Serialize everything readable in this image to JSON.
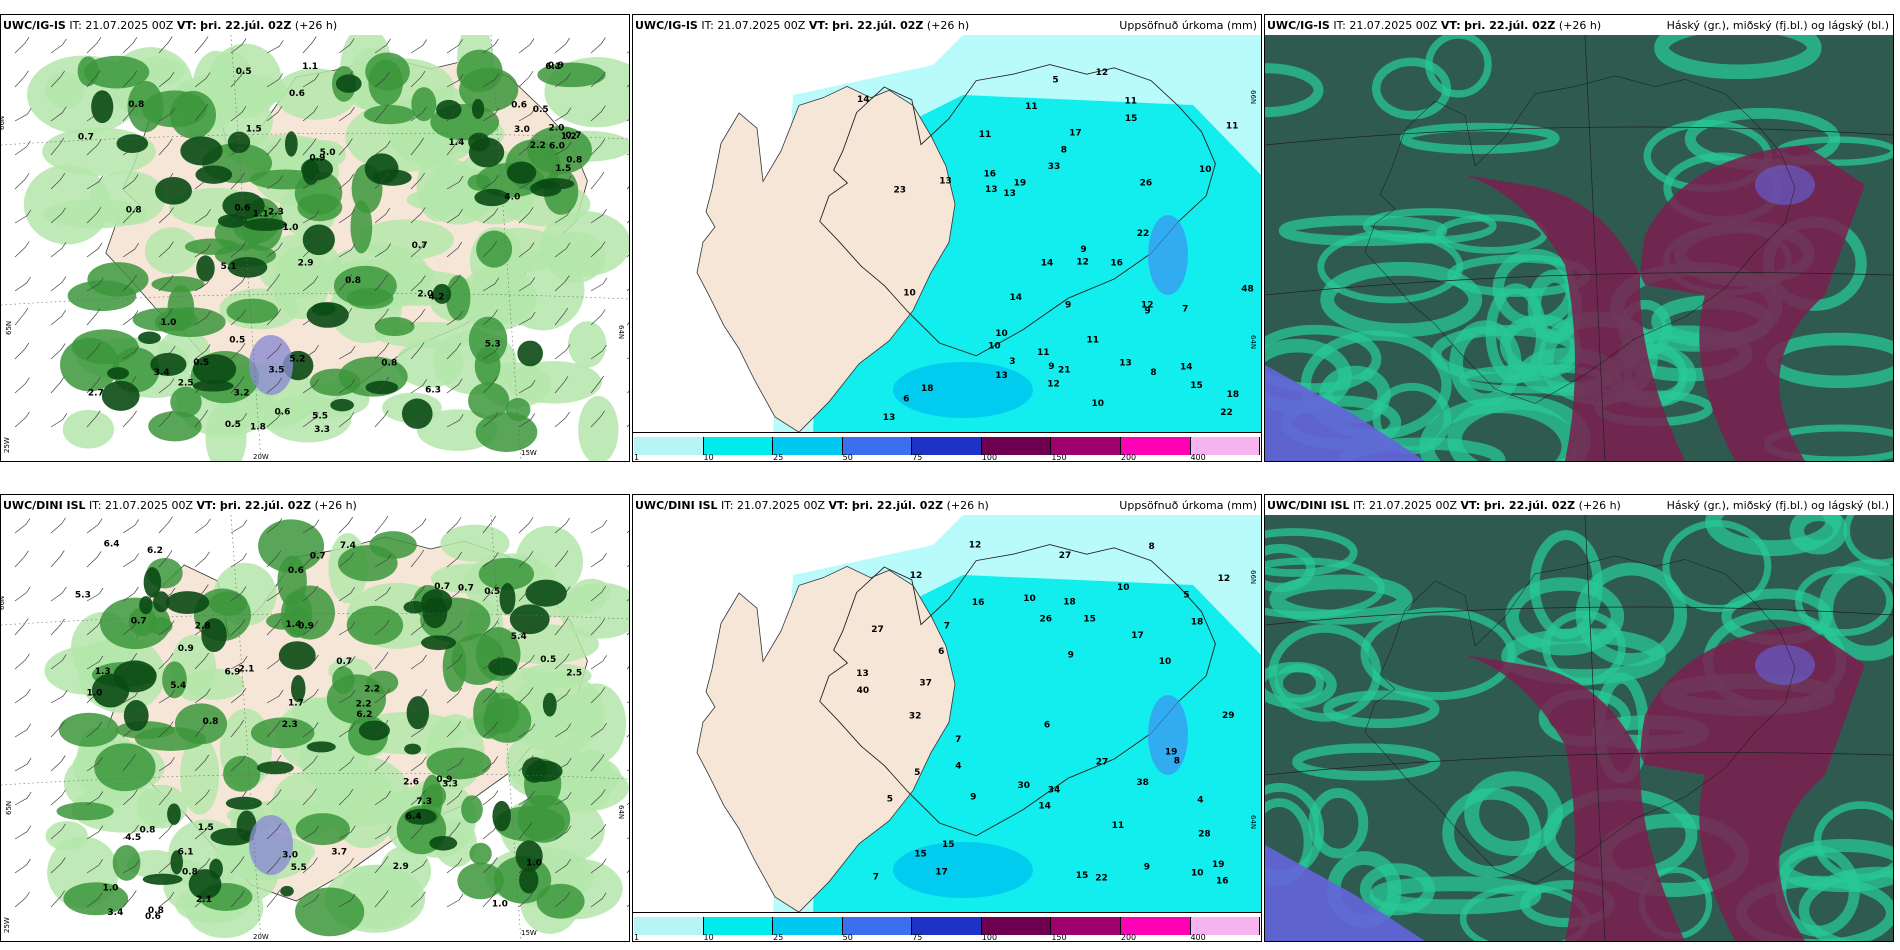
{
  "panels": [
    {
      "id": "ig-wind",
      "model": "UWC/IG-IS",
      "it": "IT: 21.07.2025 00Z",
      "vt_label": "VT:",
      "vt": "þri. 22.júl. 02Z",
      "lead": "(+26 h)",
      "right_title": "",
      "values": [
        "1.0",
        "0.8",
        "2.0",
        "2.3",
        "0.9",
        "0.9",
        "0.5",
        "0.8",
        "0.5",
        "0.5",
        "1.4",
        "0.8",
        "2.2",
        "2.5",
        "0.7",
        "0.6",
        "0.5",
        "1.5",
        "0.8",
        "0.6",
        "2.9",
        "1.8",
        "4.0",
        "3.2",
        "3.3",
        "2.0",
        "5.1",
        "5.3",
        "2.7",
        "6.3",
        "4.2",
        "5.2",
        "3.0",
        "5.5",
        "5.0",
        "3.4",
        "1.1",
        "0.8",
        "0.6",
        "0.7",
        "0.5",
        "1.1",
        "3.5",
        "6.0",
        "6.1",
        "0.7",
        "1.2",
        "1.5",
        "1.0",
        "0.6"
      ],
      "axis": [
        "66N",
        "65N",
        "64N",
        "25W",
        "20W",
        "15W"
      ]
    },
    {
      "id": "ig-precip",
      "model": "UWC/IG-IS",
      "it": "IT: 21.07.2025 00Z",
      "vt_label": "VT:",
      "vt": "þri. 22.júl. 02Z",
      "lead": "(+26 h)",
      "right_title": "Uppsöfnuð úrkoma (mm)",
      "values": [
        "6",
        "7",
        "9",
        "9",
        "11",
        "12",
        "14",
        "11",
        "8",
        "10",
        "22",
        "13",
        "3",
        "5",
        "13",
        "16",
        "12",
        "10",
        "14",
        "11",
        "14",
        "18",
        "12",
        "16",
        "9",
        "15",
        "19",
        "8",
        "10",
        "11",
        "15",
        "14",
        "17",
        "13",
        "12",
        "10",
        "9",
        "26",
        "23",
        "11",
        "13",
        "10",
        "11",
        "13",
        "22",
        "13",
        "33",
        "21",
        "48",
        "18"
      ],
      "axis": [
        "66N",
        "65N",
        "64N"
      ]
    },
    {
      "id": "ig-cloud",
      "model": "UWC/IG-IS",
      "it": "IT: 21.07.2025 00Z",
      "vt_label": "VT:",
      "vt": "þri. 22.júl. 02Z",
      "lead": "(+26 h)",
      "right_title": "Háský (gr.), miðský (fj.bl.) og lágský (bl.)"
    },
    {
      "id": "dini-wind",
      "model": "UWC/DINI ISL",
      "it": "IT: 21.07.2025 00Z",
      "vt_label": "VT:",
      "vt": "þri. 22.júl. 02Z",
      "lead": "(+26 h)",
      "right_title": "",
      "values": [
        "0.8",
        "1.4",
        "0.7",
        "0.8",
        "2.1",
        "1.0",
        "0.8",
        "0.9",
        "2.2",
        "3.3",
        "0.7",
        "0.6",
        "1.0",
        "2.6",
        "0.5",
        "2.3",
        "3.0",
        "1.7",
        "2.8",
        "0.7",
        "1.5",
        "1.0",
        "1.0",
        "0.9",
        "7.4",
        "6.9",
        "5.4",
        "6.4",
        "2.1",
        "2.5",
        "2.2",
        "3.4",
        "5.5",
        "6.2",
        "4.5",
        "5.4",
        "5.3",
        "7.3",
        "2.9",
        "6.1",
        "6.2",
        "6.4",
        "3.7",
        "0.5",
        "0.7",
        "0.8",
        "1.3",
        "0.9",
        "0.7",
        "0.6"
      ],
      "axis": [
        "66N",
        "65N",
        "64N",
        "25W",
        "20W",
        "15W"
      ]
    },
    {
      "id": "dini-precip",
      "model": "UWC/DINI ISL",
      "it": "IT: 21.07.2025 00Z",
      "vt_label": "VT:",
      "vt": "þri. 22.júl. 02Z",
      "lead": "(+26 h)",
      "right_title": "Uppsöfnuð úrkoma (mm)",
      "values": [
        "4",
        "5",
        "6",
        "8",
        "10",
        "9",
        "5",
        "6",
        "7",
        "13",
        "12",
        "10",
        "19",
        "18",
        "15",
        "5",
        "9",
        "8",
        "7",
        "11",
        "15",
        "12",
        "17",
        "16",
        "32",
        "27",
        "37",
        "40",
        "29",
        "27",
        "18",
        "19",
        "22",
        "27",
        "30",
        "34",
        "28",
        "12",
        "15",
        "17",
        "16",
        "15",
        "10",
        "7",
        "9",
        "10",
        "4",
        "14",
        "26",
        "38"
      ],
      "axis": [
        "66N",
        "65N",
        "64N"
      ]
    },
    {
      "id": "dini-cloud",
      "model": "UWC/DINI ISL",
      "it": "IT: 21.07.2025 00Z",
      "vt_label": "VT:",
      "vt": "þri. 22.júl. 02Z",
      "lead": "(+26 h)",
      "right_title": "Háský (gr.), miðský (fj.bl.) og lágský (bl.)"
    }
  ],
  "colorbar": {
    "labels": [
      "1",
      "10",
      "25",
      "50",
      "75",
      "100",
      "150",
      "200",
      "400"
    ],
    "colors": [
      "#b5f5f5",
      "#00ebeb",
      "#00c8f0",
      "#3c6ef0",
      "#1e32c8",
      "#6e0050",
      "#a0006e",
      "#ff00b4",
      "#f5b4f0"
    ]
  },
  "colors": {
    "land": "#f5e6d7",
    "sea_light": "#b9fafa",
    "green_dark": "#0a4a14",
    "green_mid": "#3c963c",
    "green_light": "#b4e6aa",
    "cloud_bg": "#2e5a50",
    "cloud_high": "#7a1e50",
    "cloud_mid": "#28c896",
    "cloud_low": "#6464dc"
  }
}
